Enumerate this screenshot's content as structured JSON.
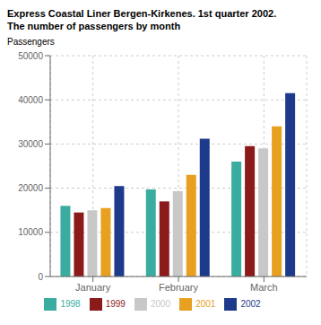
{
  "chart_data": {
    "type": "bar",
    "title": "Express Coastal Liner Bergen-Kirkenes. 1st quarter 2002.",
    "subtitle": "The number of passengers by month",
    "ylabel": "Passengers",
    "categories": [
      "January",
      "February",
      "March"
    ],
    "series": [
      {
        "name": "1998",
        "color": "#3aada0",
        "values": [
          16000,
          19700,
          26000
        ]
      },
      {
        "name": "1999",
        "color": "#8b1a1a",
        "values": [
          14500,
          17000,
          29500
        ]
      },
      {
        "name": "2000",
        "color": "#c8c8c8",
        "values": [
          15000,
          19300,
          29000
        ]
      },
      {
        "name": "2001",
        "color": "#e8a020",
        "values": [
          15500,
          23000,
          34000
        ]
      },
      {
        "name": "2002",
        "color": "#1e3a8a",
        "values": [
          20500,
          31200,
          41500
        ]
      }
    ],
    "ylim": [
      0,
      50000
    ],
    "yticks": [
      0,
      10000,
      20000,
      30000,
      40000,
      50000
    ],
    "grid": true,
    "legend": "bottom"
  }
}
